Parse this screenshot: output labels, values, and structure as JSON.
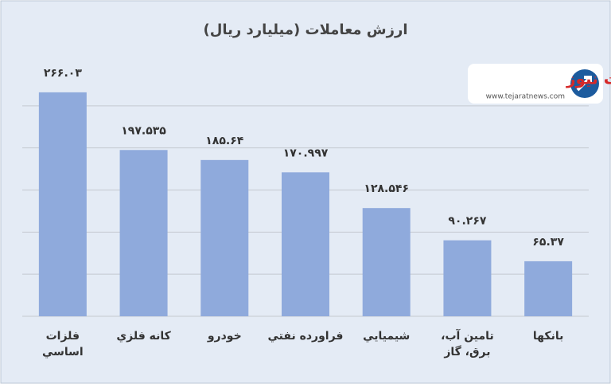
{
  "chart_data": {
    "type": "bar",
    "title": "ارزش معاملات  (میلیارد ریال)",
    "categories": [
      "فلزات اساسي",
      "کانه فلزي",
      "خودرو",
      "فراورده نفتي",
      "شيميايي",
      "تامين آب، برق، گاز",
      "بانكها"
    ],
    "values": [
      266.03,
      197.535,
      185.64,
      170.997,
      128.546,
      90.267,
      65.37
    ],
    "value_labels": [
      "۲۶۶.۰۳",
      "۱۹۷.۵۳۵",
      "۱۸۵.۶۴",
      "۱۷۰.۹۹۷",
      "۱۲۸.۵۴۶",
      "۹۰.۲۶۷",
      "۶۵.۳۷"
    ],
    "color": "#8faadc",
    "ylim": [
      0,
      300
    ],
    "yticks": [
      0,
      50,
      100,
      150,
      200,
      250
    ],
    "grid": true,
    "logo": {
      "name": "تجارت نیوز",
      "url": "www.tejaratnews.com"
    }
  }
}
